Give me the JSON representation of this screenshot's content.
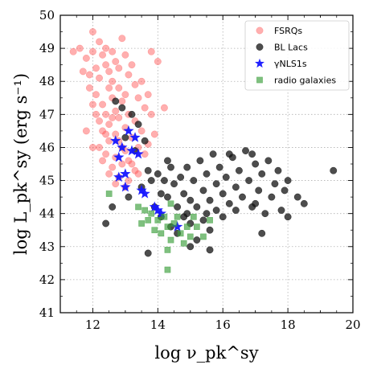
{
  "chart_data": {
    "type": "scatter",
    "xlabel": "log ν_pk^sy",
    "ylabel": "log L_pk^sy (erg s⁻¹)",
    "xlim": [
      11,
      20
    ],
    "ylim": [
      41,
      50
    ],
    "xticks": [
      "12",
      "14",
      "16",
      "18",
      "20"
    ],
    "yticks": [
      "41",
      "42",
      "43",
      "44",
      "45",
      "46",
      "47",
      "48",
      "49",
      "50"
    ],
    "grid": true,
    "legend_position": "top-right",
    "series": [
      {
        "name": "FSRQs",
        "marker": "circle",
        "color": "#ff4d4d",
        "points": [
          [
            11.4,
            48.9
          ],
          [
            11.6,
            49.0
          ],
          [
            11.7,
            48.3
          ],
          [
            11.8,
            48.7
          ],
          [
            11.9,
            47.8
          ],
          [
            12.0,
            49.5
          ],
          [
            12.0,
            48.9
          ],
          [
            12.1,
            48.4
          ],
          [
            12.1,
            47.6
          ],
          [
            12.2,
            49.2
          ],
          [
            12.2,
            48.1
          ],
          [
            12.3,
            48.8
          ],
          [
            12.3,
            47.3
          ],
          [
            12.4,
            49.0
          ],
          [
            12.4,
            48.5
          ],
          [
            12.4,
            47.0
          ],
          [
            12.5,
            48.3
          ],
          [
            12.5,
            47.8
          ],
          [
            12.5,
            46.7
          ],
          [
            12.6,
            48.9
          ],
          [
            12.6,
            48.0
          ],
          [
            12.6,
            47.5
          ],
          [
            12.7,
            48.6
          ],
          [
            12.7,
            47.1
          ],
          [
            12.7,
            46.4
          ],
          [
            12.8,
            48.4
          ],
          [
            12.8,
            47.8
          ],
          [
            12.8,
            46.9
          ],
          [
            12.9,
            49.3
          ],
          [
            12.9,
            47.4
          ],
          [
            12.9,
            46.0
          ],
          [
            13.0,
            48.8
          ],
          [
            13.0,
            47.6
          ],
          [
            13.0,
            46.6
          ],
          [
            13.1,
            48.2
          ],
          [
            13.1,
            47.0
          ],
          [
            13.1,
            45.6
          ],
          [
            13.2,
            48.5
          ],
          [
            13.2,
            46.3
          ],
          [
            13.3,
            47.9
          ],
          [
            13.3,
            46.8
          ],
          [
            13.3,
            45.3
          ],
          [
            13.4,
            47.5
          ],
          [
            13.4,
            46.0
          ],
          [
            13.5,
            48.0
          ],
          [
            13.5,
            46.5
          ],
          [
            13.6,
            47.2
          ],
          [
            13.6,
            45.8
          ],
          [
            13.7,
            47.6
          ],
          [
            13.7,
            46.1
          ],
          [
            13.8,
            48.9
          ],
          [
            13.8,
            47.0
          ],
          [
            13.9,
            46.4
          ],
          [
            14.0,
            48.6
          ],
          [
            14.2,
            47.2
          ],
          [
            12.2,
            46.0
          ],
          [
            12.4,
            45.8
          ],
          [
            12.6,
            45.4
          ],
          [
            12.8,
            45.1
          ],
          [
            13.0,
            44.8
          ],
          [
            12.1,
            47.0
          ],
          [
            12.3,
            46.5
          ],
          [
            12.5,
            46.2
          ],
          [
            12.7,
            45.7
          ],
          [
            12.9,
            45.5
          ],
          [
            13.1,
            45.0
          ],
          [
            11.9,
            48.2
          ],
          [
            12.0,
            47.3
          ],
          [
            12.2,
            46.8
          ],
          [
            12.4,
            46.4
          ],
          [
            12.6,
            46.9
          ],
          [
            12.8,
            46.2
          ],
          [
            13.0,
            45.9
          ],
          [
            13.2,
            45.5
          ],
          [
            13.4,
            45.2
          ],
          [
            11.8,
            46.5
          ],
          [
            12.0,
            46.0
          ],
          [
            12.3,
            45.6
          ],
          [
            12.5,
            45.2
          ],
          [
            12.7,
            44.9
          ]
        ]
      },
      {
        "name": "BL Lacs",
        "marker": "circle",
        "color": "#111111",
        "points": [
          [
            12.4,
            43.7
          ],
          [
            12.6,
            44.2
          ],
          [
            12.7,
            47.4
          ],
          [
            12.9,
            47.2
          ],
          [
            13.0,
            46.3
          ],
          [
            13.1,
            44.5
          ],
          [
            13.2,
            47.0
          ],
          [
            13.3,
            45.9
          ],
          [
            13.4,
            46.7
          ],
          [
            13.5,
            44.8
          ],
          [
            13.6,
            46.2
          ],
          [
            13.7,
            45.3
          ],
          [
            13.8,
            45.0
          ],
          [
            13.9,
            44.2
          ],
          [
            14.0,
            45.2
          ],
          [
            14.1,
            44.6
          ],
          [
            14.1,
            43.9
          ],
          [
            14.2,
            45.0
          ],
          [
            14.3,
            44.5
          ],
          [
            14.4,
            43.6
          ],
          [
            14.4,
            45.4
          ],
          [
            14.5,
            44.9
          ],
          [
            14.6,
            44.2
          ],
          [
            14.6,
            43.4
          ],
          [
            14.7,
            45.1
          ],
          [
            14.8,
            44.6
          ],
          [
            14.8,
            43.9
          ],
          [
            14.9,
            45.4
          ],
          [
            15.0,
            44.4
          ],
          [
            15.0,
            43.7
          ],
          [
            15.1,
            45.0
          ],
          [
            15.2,
            44.2
          ],
          [
            15.2,
            43.2
          ],
          [
            15.3,
            45.6
          ],
          [
            15.4,
            44.7
          ],
          [
            15.4,
            43.8
          ],
          [
            15.5,
            45.2
          ],
          [
            15.6,
            44.4
          ],
          [
            15.6,
            43.5
          ],
          [
            15.7,
            45.8
          ],
          [
            15.8,
            44.9
          ],
          [
            15.8,
            44.1
          ],
          [
            15.9,
            45.4
          ],
          [
            16.0,
            44.6
          ],
          [
            16.0,
            43.9
          ],
          [
            16.1,
            45.1
          ],
          [
            16.2,
            44.3
          ],
          [
            16.3,
            45.7
          ],
          [
            16.4,
            44.8
          ],
          [
            16.5,
            45.3
          ],
          [
            16.6,
            44.5
          ],
          [
            16.7,
            45.9
          ],
          [
            16.8,
            45.0
          ],
          [
            16.9,
            44.2
          ],
          [
            17.0,
            45.5
          ],
          [
            17.1,
            44.7
          ],
          [
            17.2,
            45.2
          ],
          [
            17.3,
            44.0
          ],
          [
            17.4,
            45.6
          ],
          [
            17.5,
            44.5
          ],
          [
            17.6,
            44.9
          ],
          [
            17.7,
            45.3
          ],
          [
            17.8,
            44.1
          ],
          [
            17.9,
            44.7
          ],
          [
            18.0,
            43.9
          ],
          [
            18.3,
            44.5
          ],
          [
            18.5,
            44.3
          ],
          [
            19.4,
            45.3
          ],
          [
            17.2,
            43.4
          ],
          [
            15.6,
            42.9
          ],
          [
            13.7,
            42.8
          ],
          [
            15.0,
            43.0
          ],
          [
            16.2,
            45.8
          ],
          [
            16.9,
            45.8
          ],
          [
            14.3,
            45.6
          ],
          [
            14.9,
            44.0
          ],
          [
            15.5,
            44.0
          ],
          [
            16.4,
            44.1
          ],
          [
            17.0,
            44.3
          ],
          [
            18.0,
            45.0
          ]
        ]
      },
      {
        "name": "γNLS1s",
        "marker": "star",
        "color": "#1515ff",
        "points": [
          [
            12.7,
            46.2
          ],
          [
            12.8,
            45.7
          ],
          [
            12.9,
            46.0
          ],
          [
            13.0,
            45.2
          ],
          [
            13.1,
            46.5
          ],
          [
            13.2,
            45.9
          ],
          [
            13.3,
            46.3
          ],
          [
            13.4,
            45.8
          ],
          [
            13.5,
            44.7
          ],
          [
            13.6,
            44.6
          ],
          [
            13.9,
            44.2
          ],
          [
            14.0,
            44.1
          ],
          [
            14.1,
            44.0
          ],
          [
            14.6,
            43.6
          ],
          [
            12.8,
            45.1
          ],
          [
            13.0,
            44.8
          ]
        ]
      },
      {
        "name": "radio galaxies",
        "marker": "square",
        "color": "#3a9e3a",
        "points": [
          [
            12.5,
            44.6
          ],
          [
            13.4,
            44.2
          ],
          [
            13.6,
            44.1
          ],
          [
            13.7,
            43.8
          ],
          [
            13.8,
            44.0
          ],
          [
            13.9,
            43.5
          ],
          [
            14.0,
            43.8
          ],
          [
            14.1,
            43.4
          ],
          [
            14.2,
            43.9
          ],
          [
            14.3,
            43.6
          ],
          [
            14.3,
            42.9
          ],
          [
            14.4,
            44.3
          ],
          [
            14.4,
            43.2
          ],
          [
            14.5,
            43.7
          ],
          [
            14.6,
            43.9
          ],
          [
            14.7,
            43.4
          ],
          [
            14.8,
            43.1
          ],
          [
            14.9,
            43.6
          ],
          [
            15.0,
            43.3
          ],
          [
            15.1,
            43.9
          ],
          [
            15.2,
            43.6
          ],
          [
            15.4,
            43.3
          ],
          [
            15.6,
            43.8
          ],
          [
            14.3,
            42.3
          ],
          [
            13.5,
            43.7
          ]
        ]
      }
    ]
  }
}
